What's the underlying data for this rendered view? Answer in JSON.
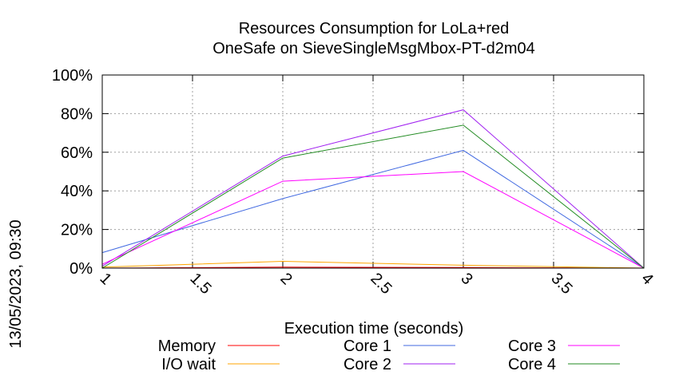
{
  "chart_data": {
    "type": "line",
    "title": "Resources Consumption for LoLa+red",
    "subtitle": "OneSafe on SieveSingleMsgMbox-PT-d2m04",
    "xlabel": "Execution time (seconds)",
    "ylabel": "",
    "xlim": [
      1,
      4
    ],
    "ylim": [
      0,
      100
    ],
    "x_ticks": [
      "1",
      "1.5",
      "2",
      "2.5",
      "3",
      "3.5",
      "4"
    ],
    "y_ticks": [
      "0%",
      "20%",
      "40%",
      "60%",
      "80%",
      "100%"
    ],
    "grid": true,
    "legend_position": "bottom",
    "series": [
      {
        "name": "Memory",
        "color": "#ff0000",
        "x": [
          1,
          2,
          3,
          4
        ],
        "values": [
          0,
          0.5,
          0.3,
          0
        ]
      },
      {
        "name": "I/O wait",
        "color": "#ffa500",
        "x": [
          1,
          2,
          3,
          4
        ],
        "values": [
          0.5,
          3.5,
          1.5,
          0
        ]
      },
      {
        "name": "Core 1",
        "color": "#4169e1",
        "x": [
          1,
          2,
          3,
          4
        ],
        "values": [
          8,
          36,
          61,
          0
        ]
      },
      {
        "name": "Core 2",
        "color": "#a020f0",
        "x": [
          1,
          2,
          3,
          4
        ],
        "values": [
          1,
          58,
          82,
          0
        ]
      },
      {
        "name": "Core 3",
        "color": "#ff00ff",
        "x": [
          1,
          2,
          3,
          4
        ],
        "values": [
          2,
          45,
          50,
          0
        ]
      },
      {
        "name": "Core 4",
        "color": "#228b22",
        "x": [
          1,
          2,
          3,
          4
        ],
        "values": [
          0,
          57,
          74,
          0
        ]
      }
    ]
  },
  "timestamp": "13/05/2023, 09:30"
}
